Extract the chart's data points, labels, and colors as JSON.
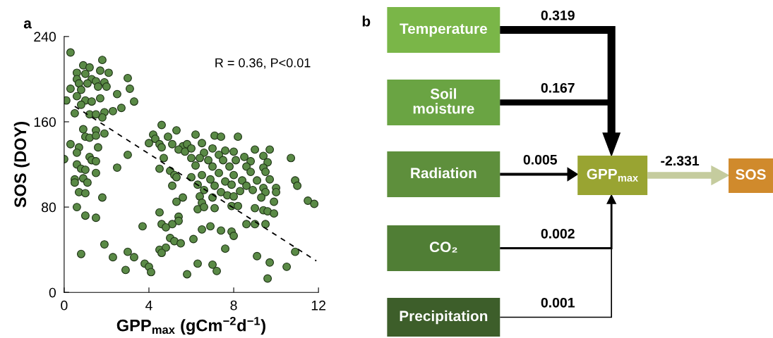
{
  "chart_data": [
    {
      "type": "scatter",
      "title": "a",
      "xlabel": "GPP$_{max}$ (gCm$^{−2}$d$^{−1}$)",
      "ylabel": "SOS (DOY)",
      "xlim": [
        0,
        12
      ],
      "ylim": [
        0,
        240
      ],
      "xticks": [
        0,
        4,
        8,
        12
      ],
      "yticks": [
        0,
        80,
        160,
        240
      ],
      "grid": false,
      "marker": "circle",
      "annotations": [
        "R = 0.36, P<0.01"
      ],
      "series": [
        {
          "type": "scatter",
          "color": "#5a8a46",
          "x": [
            0.3,
            1.8,
            0.9,
            1.2,
            1.7,
            0.6,
            2.1,
            1.0,
            3.0,
            0.6,
            1.3,
            1.5,
            0.7,
            1.9,
            1.1,
            2.0,
            0.3,
            0.8,
            1.6,
            2.5,
            0.6,
            1.7,
            3.1,
            3.3,
            0.1,
            1.0,
            0.8,
            1.3,
            2.7,
            2.3,
            1.9,
            0.5,
            1.2,
            1.8,
            1.5,
            0.9,
            1.5,
            1.9,
            1.0,
            1.2,
            1.5,
            0.3,
            0.7,
            1.6,
            0.6,
            3.0,
            1.2,
            1.3,
            0.0,
            1.5,
            0.6,
            0.8,
            1.0,
            2.5,
            1.5,
            0.5,
            0.9,
            1.1,
            0.5,
            0.7,
            1.0,
            1.8,
            0.6,
            1.0,
            1.5,
            0.8,
            1.9,
            2.3,
            3.0,
            3.3,
            3.8,
            2.9,
            4.0,
            4.1,
            4.6,
            5.3,
            4.2,
            4.9,
            4.3,
            6.2,
            7.1,
            7.4,
            8.2,
            4.0,
            4.5,
            5.1,
            5.6,
            5.8,
            6.5,
            4.6,
            5.4,
            5.7,
            6.0,
            7.0,
            7.6,
            8.0,
            9.0,
            9.7,
            6.6,
            6.4,
            7.3,
            8.5,
            9.4,
            4.7,
            6.0,
            6.8,
            7.5,
            8.1,
            8.8,
            9.6,
            10.7,
            6.2,
            7.0,
            7.8,
            8.6,
            9.4,
            4.5,
            5.0,
            5.2,
            6.5,
            7.3,
            8.0,
            8.8,
            9.5,
            6.0,
            5.3,
            6.9,
            7.6,
            8.4,
            9.1,
            9.7,
            10.9,
            5.1,
            6.3,
            7.1,
            7.9,
            8.6,
            9.4,
            10.0,
            11.0,
            6.6,
            7.4,
            8.3,
            8.9,
            9.5,
            5.6,
            6.4,
            7.0,
            7.7,
            8.0,
            9.3,
            10.0,
            9.9,
            5.3,
            6.5,
            7.9,
            8.2,
            6.3,
            6.6,
            7.1,
            9.0,
            9.4,
            9.6,
            9.9,
            11.5,
            11.8,
            4.5,
            5.4,
            5.4,
            4.6,
            5.1,
            4.8,
            3.7,
            6.9,
            6.5,
            7.4,
            7.9,
            8.0,
            8.6,
            9.0,
            9.5,
            5.0,
            5.2,
            5.5,
            6.1,
            7.6,
            4.5,
            4.8,
            4.6,
            9.1,
            10.9,
            9.7,
            6.3,
            7.0,
            7.2,
            5.8,
            10.5,
            9.6
          ],
          "values": [
            225,
            218,
            213,
            211,
            208,
            206,
            206,
            205,
            201,
            200,
            200,
            198,
            196,
            197,
            196,
            193,
            191,
            190,
            193,
            186,
            184,
            182,
            191,
            179,
            180,
            180,
            176,
            179,
            173,
            170,
            169,
            168,
            167,
            164,
            167,
            153,
            152,
            149,
            146,
            145,
            147,
            139,
            136,
            136,
            131,
            129,
            127,
            124,
            125,
            123,
            120,
            116,
            115,
            117,
            112,
            106,
            107,
            103,
            103,
            94,
            93,
            89,
            80,
            72,
            70,
            36,
            45,
            33,
            38,
            33,
            27,
            21,
            24,
            19,
            157,
            152,
            148,
            146,
            144,
            148,
            147,
            146,
            146,
            140,
            139,
            139,
            137,
            139,
            140,
            136,
            134,
            132,
            135,
            135,
            133,
            132,
            134,
            134,
            131,
            126,
            129,
            127,
            128,
            126,
            126,
            124,
            124,
            124,
            123,
            122,
            126,
            119,
            118,
            118,
            118,
            117,
            116,
            114,
            110,
            110,
            112,
            110,
            113,
            113,
            108,
            108,
            106,
            104,
            105,
            105,
            106,
            105,
            100,
            101,
            100,
            101,
            100,
            98,
            98,
            100,
            96,
            94,
            95,
            96,
            94,
            89,
            90,
            89,
            91,
            90,
            89,
            94,
            85,
            85,
            84,
            81,
            81,
            78,
            80,
            79,
            79,
            77,
            76,
            74,
            86,
            83,
            75,
            71,
            67,
            64,
            64,
            61,
            62,
            62,
            59,
            58,
            57,
            53,
            64,
            64,
            64,
            51,
            48,
            46,
            50,
            41,
            40,
            42,
            37,
            34,
            38,
            28,
            27,
            26,
            20,
            17,
            24,
            13
          ]
        },
        {
          "type": "line",
          "color": "#000000",
          "line_style": "dashed",
          "marker": "none",
          "x": [
            0.5,
            11.9
          ],
          "values": [
            174.5,
            29.5
          ]
        }
      ]
    },
    {
      "type": "other",
      "title": "b",
      "annotations": [
        "Temperature",
        "Soil\nmoisture",
        "Radiation",
        "CO₂",
        "Precipitation",
        "GPP$_{max}$",
        "SOS",
        "0.319",
        "0.167",
        "0.005",
        "0.002",
        "0.001",
        "-2.331"
      ]
    }
  ]
}
